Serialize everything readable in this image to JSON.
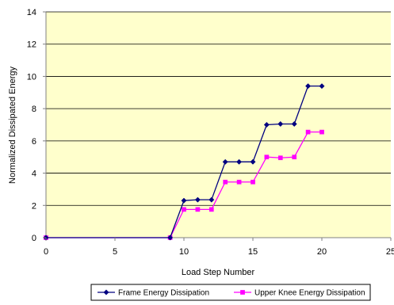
{
  "chart_data": {
    "type": "line",
    "title": "",
    "xlabel": "Load Step Number",
    "ylabel": "Normalized Dissipated Energy",
    "xlim": [
      0,
      25
    ],
    "ylim": [
      0,
      14
    ],
    "xticks": [
      0,
      5,
      10,
      15,
      20,
      25
    ],
    "yticks": [
      0,
      2,
      4,
      6,
      8,
      10,
      12,
      14
    ],
    "grid": "horizontal",
    "legend_position": "bottom",
    "plot_background": "#FFFFCC",
    "series": [
      {
        "name": "Frame Energy Dissipation",
        "color": "#000080",
        "marker": "diamond",
        "x": [
          0,
          9,
          10,
          11,
          12,
          13,
          14,
          15,
          16,
          17,
          18,
          19,
          20
        ],
        "y": [
          0,
          0,
          2.3,
          2.35,
          2.35,
          4.7,
          4.7,
          4.7,
          7.0,
          7.05,
          7.05,
          9.4,
          9.4
        ]
      },
      {
        "name": "Upper Knee Energy Dissipation",
        "color": "#FF00FF",
        "marker": "square",
        "x": [
          0,
          9,
          10,
          11,
          12,
          13,
          14,
          15,
          16,
          17,
          18,
          19,
          20
        ],
        "y": [
          0,
          0,
          1.75,
          1.75,
          1.75,
          3.45,
          3.45,
          3.45,
          5.0,
          4.95,
          5.0,
          6.55,
          6.55
        ]
      }
    ]
  }
}
